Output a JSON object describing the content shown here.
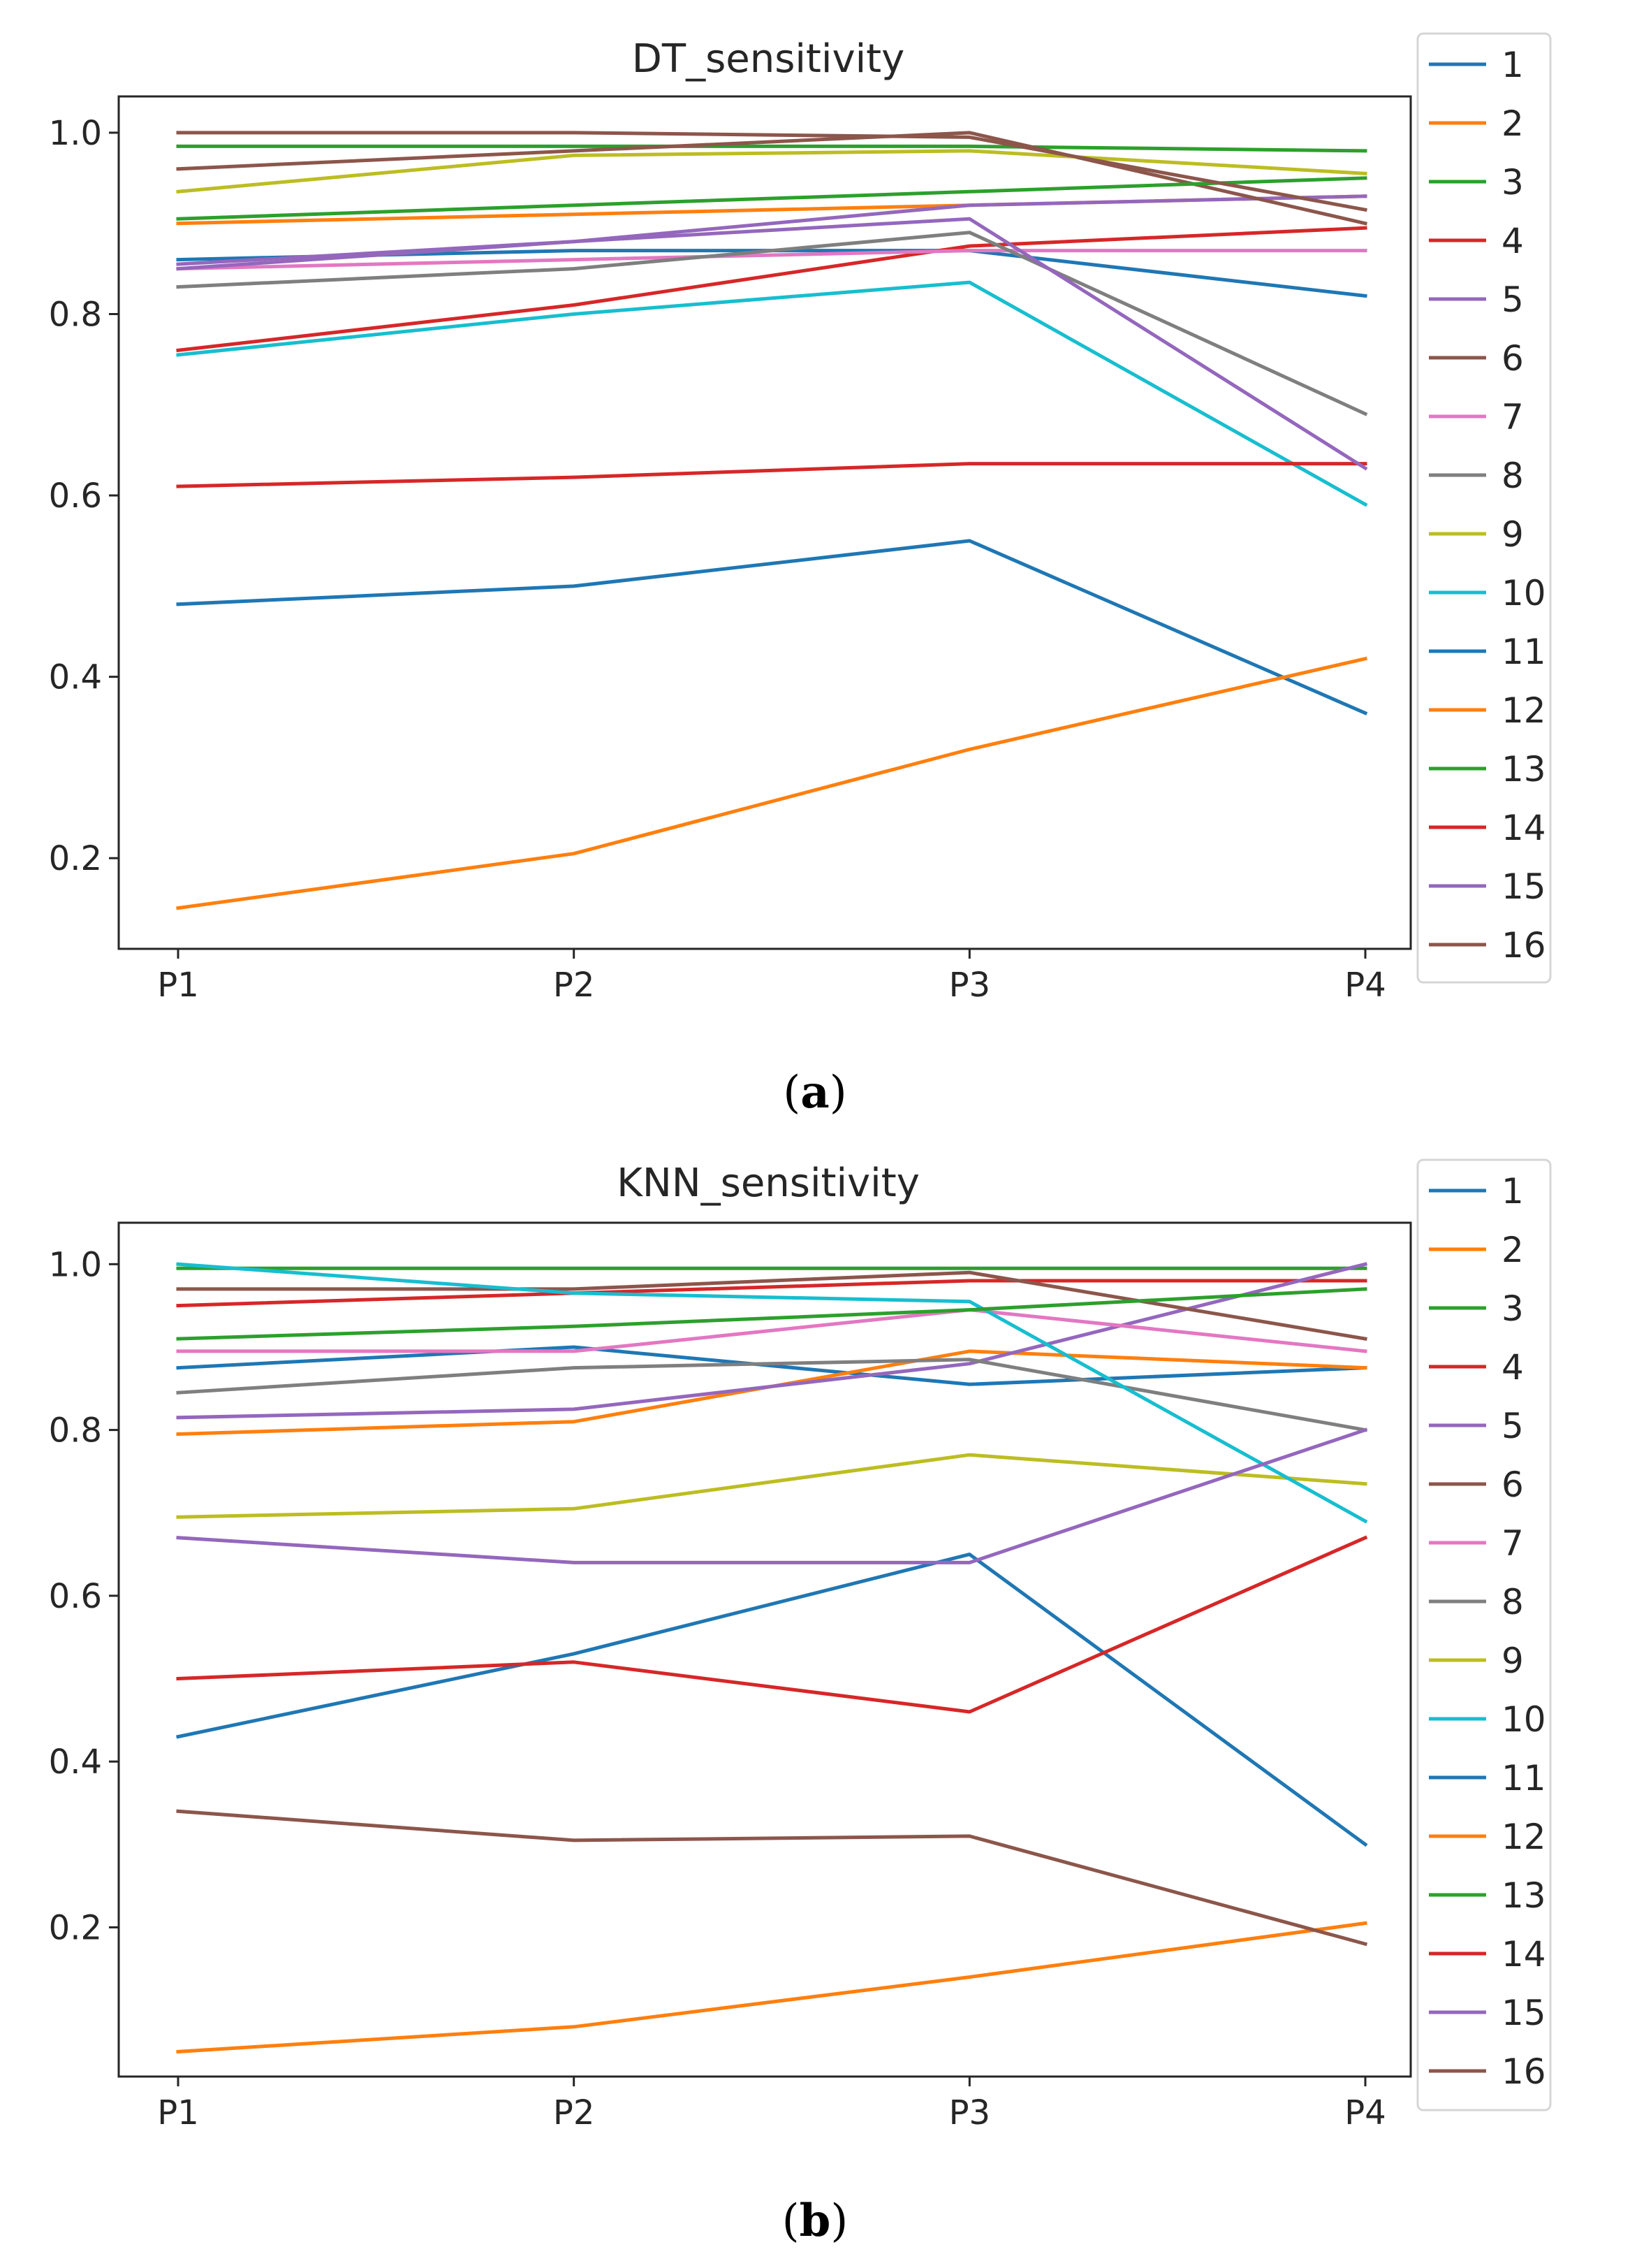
{
  "chart_data": [
    {
      "type": "line",
      "title": "DT_sensitivity",
      "caption_letter": "a",
      "categories": [
        "P1",
        "P2",
        "P3",
        "P4"
      ],
      "ylim": [
        0.1,
        1.04
      ],
      "yticks": [
        0.2,
        0.4,
        0.6,
        0.8,
        1.0
      ],
      "ytick_labels": [
        "0.2",
        "0.4",
        "0.6",
        "0.8",
        "1.0"
      ],
      "series": [
        {
          "name": "1",
          "values": [
            0.86,
            0.87,
            0.87,
            0.82
          ]
        },
        {
          "name": "2",
          "values": [
            0.9,
            0.91,
            0.92,
            0.93
          ]
        },
        {
          "name": "3",
          "values": [
            0.985,
            0.985,
            0.985,
            0.98
          ]
        },
        {
          "name": "4",
          "values": [
            0.76,
            0.81,
            0.875,
            0.895
          ]
        },
        {
          "name": "5",
          "values": [
            0.855,
            0.88,
            0.92,
            0.93
          ]
        },
        {
          "name": "6",
          "values": [
            0.96,
            0.98,
            1.0,
            0.9
          ]
        },
        {
          "name": "7",
          "values": [
            0.85,
            0.86,
            0.87,
            0.87
          ]
        },
        {
          "name": "8",
          "values": [
            0.83,
            0.85,
            0.89,
            0.69
          ]
        },
        {
          "name": "9",
          "values": [
            0.935,
            0.975,
            0.98,
            0.955
          ]
        },
        {
          "name": "10",
          "values": [
            0.755,
            0.8,
            0.835,
            0.59
          ]
        },
        {
          "name": "11",
          "values": [
            0.48,
            0.5,
            0.55,
            0.36
          ]
        },
        {
          "name": "12",
          "values": [
            0.145,
            0.205,
            0.32,
            0.42
          ]
        },
        {
          "name": "13",
          "values": [
            0.905,
            0.92,
            0.935,
            0.95
          ]
        },
        {
          "name": "14",
          "values": [
            0.61,
            0.62,
            0.635,
            0.635
          ]
        },
        {
          "name": "15",
          "values": [
            0.85,
            0.88,
            0.905,
            0.63
          ]
        },
        {
          "name": "16",
          "values": [
            1.0,
            1.0,
            0.995,
            0.915
          ]
        }
      ]
    },
    {
      "type": "line",
      "title": "KNN_sensitivity",
      "caption_letter": "b",
      "categories": [
        "P1",
        "P2",
        "P3",
        "P4"
      ],
      "ylim": [
        0.02,
        1.05
      ],
      "yticks": [
        0.2,
        0.4,
        0.6,
        0.8,
        1.0
      ],
      "ytick_labels": [
        "0.2",
        "0.4",
        "0.6",
        "0.8",
        "1.0"
      ],
      "series": [
        {
          "name": "1",
          "values": [
            0.875,
            0.9,
            0.855,
            0.875
          ]
        },
        {
          "name": "2",
          "values": [
            0.795,
            0.81,
            0.895,
            0.875
          ]
        },
        {
          "name": "3",
          "values": [
            0.995,
            0.995,
            0.995,
            0.995
          ]
        },
        {
          "name": "4",
          "values": [
            0.95,
            0.965,
            0.98,
            0.98
          ]
        },
        {
          "name": "5",
          "values": [
            0.815,
            0.825,
            0.88,
            1.0
          ]
        },
        {
          "name": "6",
          "values": [
            0.97,
            0.97,
            0.99,
            0.91
          ]
        },
        {
          "name": "7",
          "values": [
            0.895,
            0.895,
            0.945,
            0.895
          ]
        },
        {
          "name": "8",
          "values": [
            0.845,
            0.875,
            0.885,
            0.8
          ]
        },
        {
          "name": "9",
          "values": [
            0.695,
            0.705,
            0.77,
            0.735
          ]
        },
        {
          "name": "10",
          "values": [
            1.0,
            0.965,
            0.955,
            0.69
          ]
        },
        {
          "name": "11",
          "values": [
            0.43,
            0.53,
            0.65,
            0.3
          ]
        },
        {
          "name": "12",
          "values": [
            0.05,
            0.08,
            0.14,
            0.205
          ]
        },
        {
          "name": "13",
          "values": [
            0.91,
            0.925,
            0.945,
            0.97
          ]
        },
        {
          "name": "14",
          "values": [
            0.5,
            0.52,
            0.46,
            0.67
          ]
        },
        {
          "name": "15",
          "values": [
            0.67,
            0.64,
            0.64,
            0.8
          ]
        },
        {
          "name": "16",
          "values": [
            0.34,
            0.305,
            0.31,
            0.18
          ]
        }
      ]
    }
  ],
  "colors": [
    "#1f77b4",
    "#ff7f0e",
    "#2ca02c",
    "#d62728",
    "#9467bd",
    "#8c564b",
    "#e377c2",
    "#7f7f7f",
    "#bcbd22",
    "#17becf",
    "#1f77b4",
    "#ff7f0e",
    "#2ca02c",
    "#d62728",
    "#9467bd",
    "#8c564b"
  ]
}
